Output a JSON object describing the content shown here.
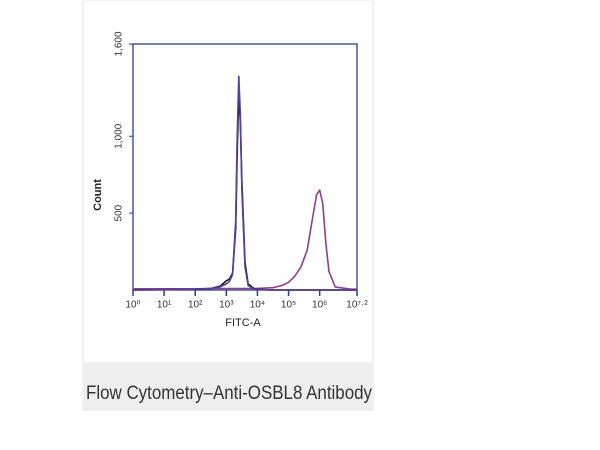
{
  "chart_data": {
    "type": "line",
    "ylabel": "Count",
    "xlabel": "FITC-A",
    "log_x": true,
    "xlim": [
      1,
      15848932
    ],
    "xticks": [
      {
        "value": 1,
        "label": "10⁰"
      },
      {
        "value": 10,
        "label": "10¹"
      },
      {
        "value": 100,
        "label": "10²"
      },
      {
        "value": 1000,
        "label": "10³"
      },
      {
        "value": 10000,
        "label": "10⁴"
      },
      {
        "value": 100000,
        "label": "10⁵"
      },
      {
        "value": 1000000,
        "label": "10⁶"
      },
      {
        "value": 15848932,
        "label": "10⁷·²"
      }
    ],
    "ylim": [
      0,
      1600
    ],
    "yticks": [
      500,
      {
        "value": 1000,
        "label": "1,000"
      },
      {
        "value": 1600,
        "label": "1,600"
      }
    ],
    "x": [
      1,
      10,
      100,
      316,
      631,
      1000,
      1259,
      1585,
      1995,
      2239,
      2512,
      2818,
      3162,
      3981,
      5012,
      7943,
      15849,
      31623,
      63096,
      100000,
      158489,
      251189,
      398107,
      630957,
      794328,
      1000000,
      1258925,
      1584893,
      1995262,
      3162278,
      10000000,
      15848932
    ],
    "series": [
      {
        "color": "#8e3f8e",
        "values": [
          8,
          8,
          8,
          10,
          10,
          10,
          10,
          10,
          10,
          10,
          10,
          10,
          10,
          10,
          10,
          10,
          12,
          15,
          30,
          50,
          90,
          150,
          260,
          500,
          620,
          650,
          560,
          300,
          120,
          20,
          5,
          5
        ]
      },
      {
        "color": "#111111",
        "values": [
          0,
          2,
          5,
          10,
          25,
          60,
          70,
          110,
          400,
          900,
          1280,
          1100,
          700,
          180,
          40,
          8,
          2,
          0,
          0,
          0,
          0,
          0,
          0,
          0,
          0,
          0,
          0,
          0,
          0,
          0,
          0,
          0
        ]
      },
      {
        "color": "#5b3d9e",
        "values": [
          0,
          2,
          5,
          10,
          20,
          40,
          55,
          100,
          450,
          1000,
          1390,
          1150,
          650,
          150,
          30,
          5,
          2,
          0,
          0,
          0,
          0,
          0,
          0,
          0,
          0,
          0,
          0,
          0,
          0,
          0,
          0,
          0
        ]
      }
    ],
    "axis_color": "#2a3f8f"
  },
  "caption": "Flow Cytometry–Anti-OSBL8 Antibody"
}
